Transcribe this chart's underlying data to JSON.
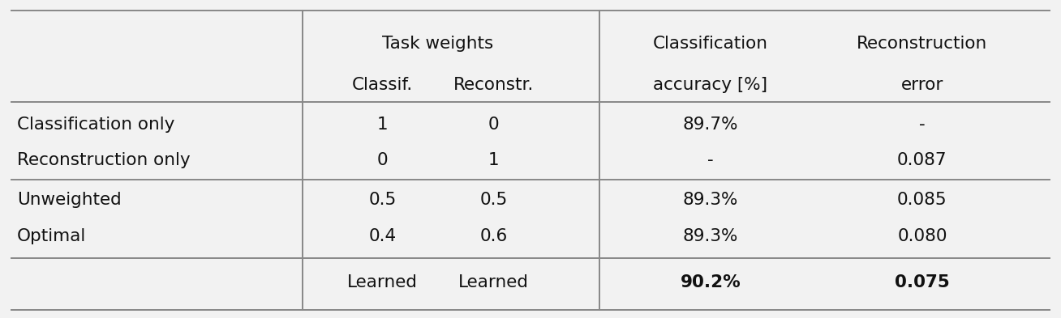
{
  "header_row1_tw": "Task weights",
  "header_row1_cl": "Classification",
  "header_row1_re": "Reconstruction",
  "header_row2": [
    "",
    "Classif.",
    "Reconstr.",
    "accuracy [%]",
    "error"
  ],
  "rows": [
    [
      "Classification only",
      "1",
      "0",
      "89.7%",
      "-"
    ],
    [
      "Reconstruction only",
      "0",
      "1",
      "-",
      "0.087"
    ],
    [
      "Unweighted",
      "0.5",
      "0.5",
      "89.3%",
      "0.085"
    ],
    [
      "Optimal",
      "0.4",
      "0.6",
      "89.3%",
      "0.080"
    ],
    [
      "",
      "Learned",
      "Learned",
      "90.2%",
      "0.075"
    ]
  ],
  "bold_last_row_cols": [
    3,
    4
  ],
  "background_color": "#f2f2f2",
  "line_color": "#888888",
  "font_color": "#111111",
  "font_size": 15.5,
  "font_family": "DejaVu Sans"
}
